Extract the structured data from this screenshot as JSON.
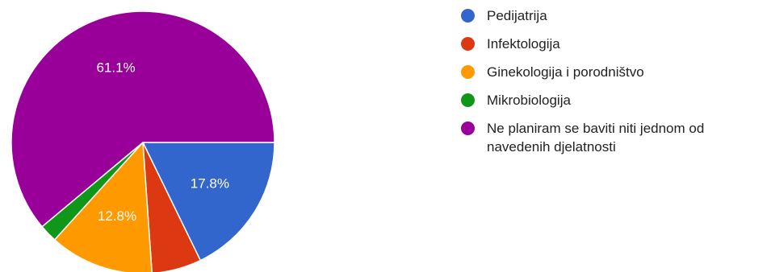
{
  "chart_data": {
    "type": "pie",
    "title": "",
    "categories": [
      "Pedijatrija",
      "Infektologija",
      "Ginekologija i porodništvo",
      "Mikrobiologija",
      "Ne planiram se baviti niti jednom od navedenih djelatnosti"
    ],
    "values": [
      17.8,
      6.1,
      12.8,
      2.2,
      61.1
    ],
    "colors": [
      "#3366cc",
      "#dc3912",
      "#ff9900",
      "#109618",
      "#990099"
    ],
    "slice_labels": [
      "17.8%",
      "",
      "12.8%",
      "",
      "61.1%"
    ],
    "legend_position": "right",
    "start_angle": "right, clockwise"
  }
}
